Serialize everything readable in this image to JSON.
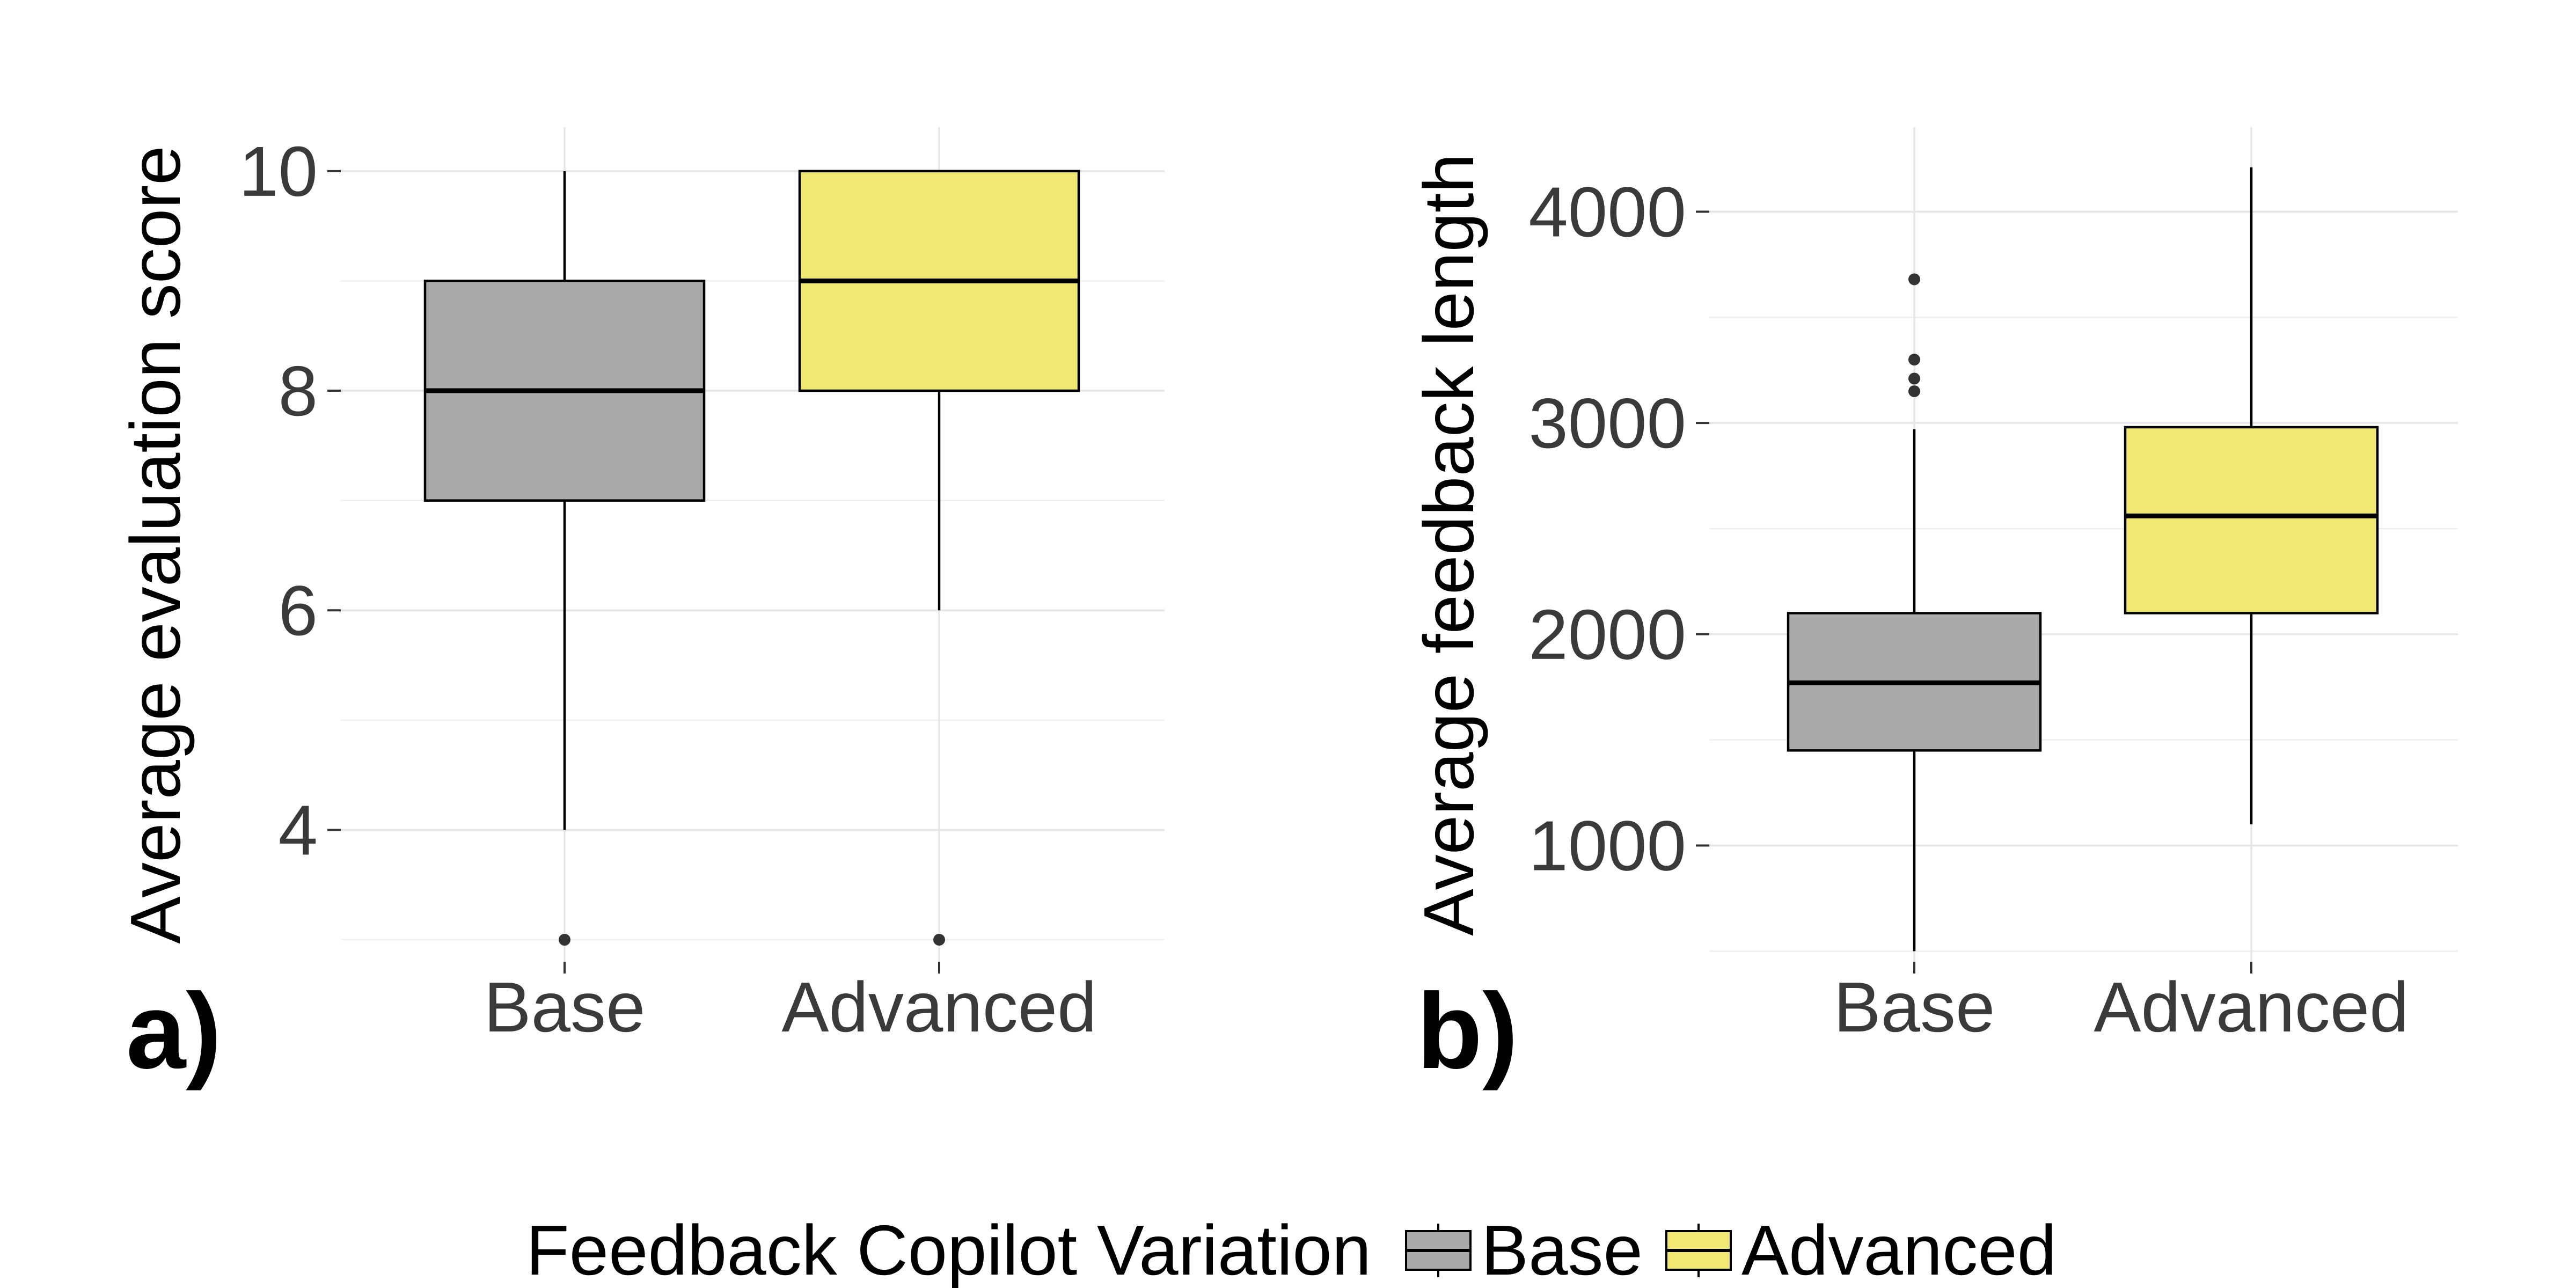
{
  "chart_data": [
    {
      "type": "boxplot",
      "panel_tag": "a)",
      "ylabel": "Average evaluation score",
      "ylim": [
        2.8,
        10.4
      ],
      "y_ticks": [
        4,
        6,
        8,
        10
      ],
      "y_tick_labels": [
        "4",
        "6",
        "8",
        "10"
      ],
      "categories": [
        "Base",
        "Advanced"
      ],
      "grid": true,
      "boxes": [
        {
          "category": "Base",
          "whisker_low": 4,
          "q1": 7,
          "median": 8,
          "q3": 9,
          "whisker_high": 10,
          "outliers": [
            3
          ],
          "fill": "#aaaaaa"
        },
        {
          "category": "Advanced",
          "whisker_low": 6,
          "q1": 8,
          "median": 9,
          "q3": 10,
          "whisker_high": 10,
          "outliers": [
            3
          ],
          "fill": "#f0e873"
        }
      ]
    },
    {
      "type": "boxplot",
      "panel_tag": "b)",
      "ylabel": "Average feedback length",
      "ylim": [
        450,
        4400
      ],
      "y_ticks": [
        1000,
        2000,
        3000,
        4000
      ],
      "y_tick_labels": [
        "1000",
        "2000",
        "3000",
        "4000"
      ],
      "categories": [
        "Base",
        "Advanced"
      ],
      "grid": true,
      "boxes": [
        {
          "category": "Base",
          "whisker_low": 500,
          "q1": 1450,
          "median": 1770,
          "q3": 2100,
          "whisker_high": 2970,
          "outliers": [
            3150,
            3210,
            3300,
            3680
          ],
          "fill": "#aaaaaa"
        },
        {
          "category": "Advanced",
          "whisker_low": 1100,
          "q1": 2100,
          "median": 2560,
          "q3": 2980,
          "whisker_high": 4210,
          "outliers": [],
          "fill": "#f0e873"
        }
      ]
    }
  ],
  "legend": {
    "title": "Feedback Copilot Variation",
    "position": "bottom",
    "items": [
      {
        "label": "Base",
        "color": "#aaaaaa"
      },
      {
        "label": "Advanced",
        "color": "#f0e873"
      }
    ]
  }
}
